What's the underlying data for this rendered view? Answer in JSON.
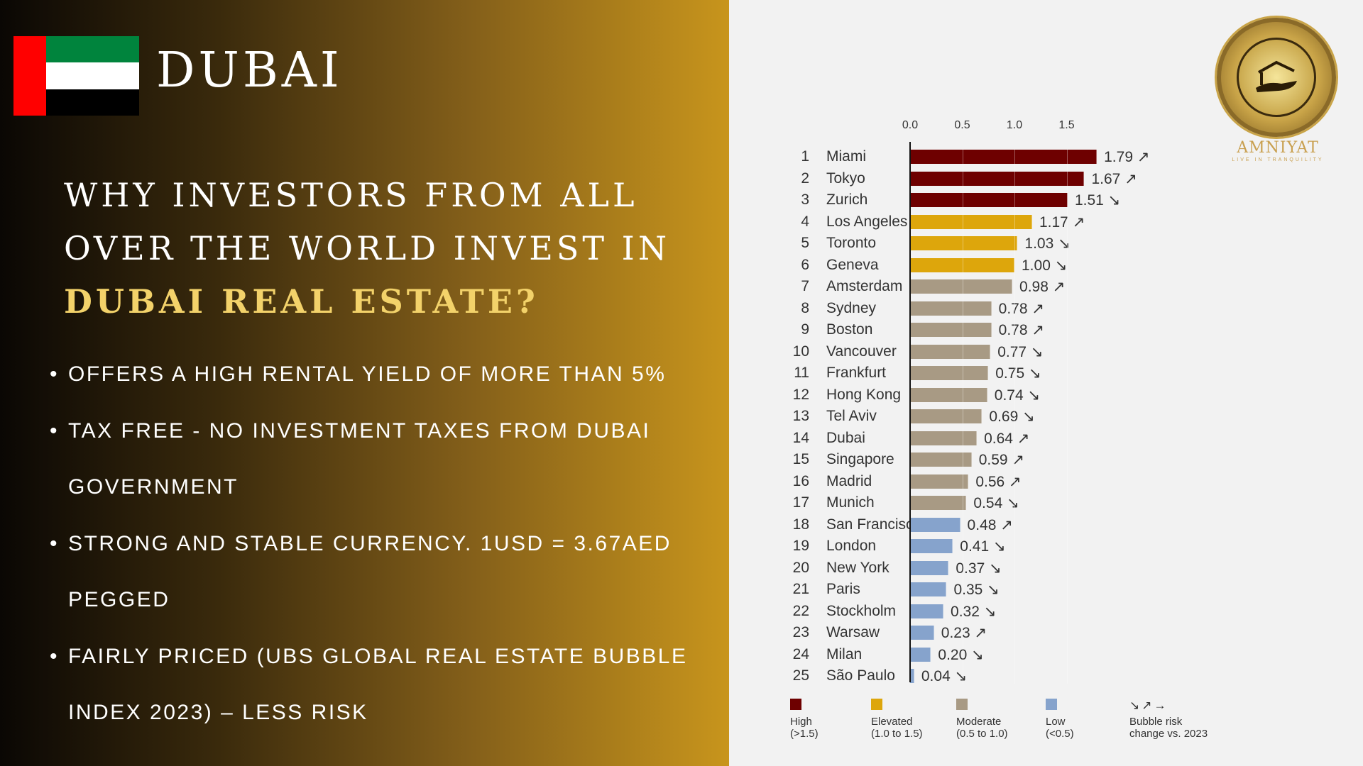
{
  "left": {
    "title": "DUBAI",
    "heading_line1": "WHY INVESTORS FROM ALL",
    "heading_line2": "OVER THE WORLD INVEST IN",
    "heading_highlight": "DUBAI REAL ESTATE?",
    "bullets": [
      "OFFERS A HIGH RENTAL YIELD OF MORE THAN 5%",
      "TAX FREE - NO INVESTMENT TAXES FROM DUBAI GOVERNMENT",
      "STRONG AND STABLE CURRENCY. 1USD = 3.67AED PEGGED",
      "FAIRLY PRICED (UBS GLOBAL REAL ESTATE BUBBLE INDEX 2023) – LESS RISK"
    ]
  },
  "logo": {
    "brand": "AMNIYAT",
    "tagline": "LIVE IN TRANQUILITY"
  },
  "chart_data": {
    "type": "bar",
    "orientation": "horizontal",
    "title": "",
    "xlim": [
      0,
      1.8
    ],
    "xticks": [
      "0.0",
      "0.5",
      "1.0",
      "1.5"
    ],
    "colors": {
      "high": "#6e0000",
      "elevated": "#dda60c",
      "moderate": "#a89a84",
      "low": "#86a3cc"
    },
    "rows": [
      {
        "rank": "1",
        "city": "Miami",
        "value": 1.79,
        "label": "1.79",
        "trend": "↗",
        "cat": "high"
      },
      {
        "rank": "2",
        "city": "Tokyo",
        "value": 1.67,
        "label": "1.67",
        "trend": "↗",
        "cat": "high"
      },
      {
        "rank": "3",
        "city": "Zurich",
        "value": 1.51,
        "label": "1.51",
        "trend": "↘",
        "cat": "high"
      },
      {
        "rank": "4",
        "city": "Los Angeles",
        "value": 1.17,
        "label": "1.17",
        "trend": "↗",
        "cat": "elevated"
      },
      {
        "rank": "5",
        "city": "Toronto",
        "value": 1.03,
        "label": "1.03",
        "trend": "↘",
        "cat": "elevated"
      },
      {
        "rank": "6",
        "city": "Geneva",
        "value": 1.0,
        "label": "1.00",
        "trend": "↘",
        "cat": "elevated"
      },
      {
        "rank": "7",
        "city": "Amsterdam",
        "value": 0.98,
        "label": "0.98",
        "trend": "↗",
        "cat": "moderate"
      },
      {
        "rank": "8",
        "city": "Sydney",
        "value": 0.78,
        "label": "0.78",
        "trend": "↗",
        "cat": "moderate"
      },
      {
        "rank": "9",
        "city": "Boston",
        "value": 0.78,
        "label": "0.78",
        "trend": "↗",
        "cat": "moderate"
      },
      {
        "rank": "10",
        "city": "Vancouver",
        "value": 0.77,
        "label": "0.77",
        "trend": "↘",
        "cat": "moderate"
      },
      {
        "rank": "11",
        "city": "Frankfurt",
        "value": 0.75,
        "label": "0.75",
        "trend": "↘",
        "cat": "moderate"
      },
      {
        "rank": "12",
        "city": "Hong Kong",
        "value": 0.74,
        "label": "0.74",
        "trend": "↘",
        "cat": "moderate"
      },
      {
        "rank": "13",
        "city": "Tel Aviv",
        "value": 0.69,
        "label": "0.69",
        "trend": "↘",
        "cat": "moderate"
      },
      {
        "rank": "14",
        "city": "Dubai",
        "value": 0.64,
        "label": "0.64",
        "trend": "↗",
        "cat": "moderate"
      },
      {
        "rank": "15",
        "city": "Singapore",
        "value": 0.59,
        "label": "0.59",
        "trend": "↗",
        "cat": "moderate"
      },
      {
        "rank": "16",
        "city": "Madrid",
        "value": 0.56,
        "label": "0.56",
        "trend": "↗",
        "cat": "moderate"
      },
      {
        "rank": "17",
        "city": "Munich",
        "value": 0.54,
        "label": "0.54",
        "trend": "↘",
        "cat": "moderate"
      },
      {
        "rank": "18",
        "city": "San Francisco",
        "value": 0.48,
        "label": "0.48",
        "trend": "↗",
        "cat": "low"
      },
      {
        "rank": "19",
        "city": "London",
        "value": 0.41,
        "label": "0.41",
        "trend": "↘",
        "cat": "low"
      },
      {
        "rank": "20",
        "city": "New York",
        "value": 0.37,
        "label": "0.37",
        "trend": "↘",
        "cat": "low"
      },
      {
        "rank": "21",
        "city": "Paris",
        "value": 0.35,
        "label": "0.35",
        "trend": "↘",
        "cat": "low"
      },
      {
        "rank": "22",
        "city": "Stockholm",
        "value": 0.32,
        "label": "0.32",
        "trend": "↘",
        "cat": "low"
      },
      {
        "rank": "23",
        "city": "Warsaw",
        "value": 0.23,
        "label": "0.23",
        "trend": "↗",
        "cat": "low"
      },
      {
        "rank": "24",
        "city": "Milan",
        "value": 0.2,
        "label": "0.20",
        "trend": "↘",
        "cat": "low"
      },
      {
        "rank": "25",
        "city": "São Paulo",
        "value": 0.04,
        "label": "0.04",
        "trend": "↘",
        "cat": "low"
      }
    ],
    "legend": [
      {
        "cat": "high",
        "line1": "High",
        "line2": "(>1.5)"
      },
      {
        "cat": "elevated",
        "line1": "Elevated",
        "line2": "(1.0 to 1.5)"
      },
      {
        "cat": "moderate",
        "line1": "Moderate",
        "line2": "(0.5 to 1.0)"
      },
      {
        "cat": "low",
        "line1": "Low",
        "line2": "(<0.5)"
      }
    ],
    "trend_legend": {
      "arrows": "↘↗→",
      "line1": "Bubble risk",
      "line2": "change vs. 2023"
    }
  }
}
